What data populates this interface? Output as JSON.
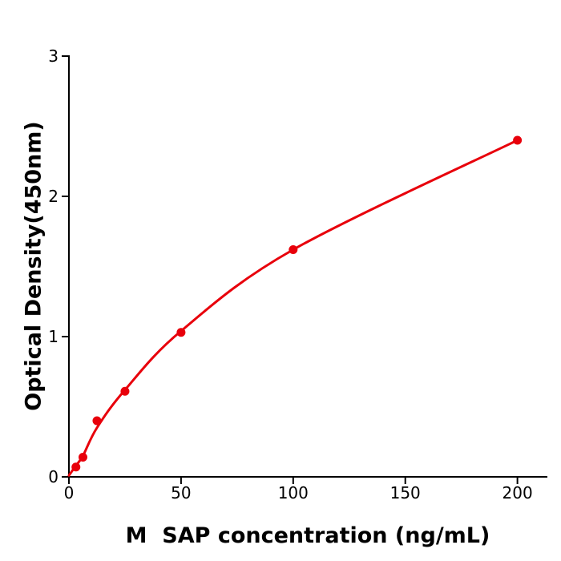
{
  "chart_data": {
    "type": "scatter",
    "title": "",
    "xlabel": "M  SAP concentration (ng/mL)",
    "ylabel": "Optical Density(450nm)",
    "x": [
      3.125,
      6.25,
      12.5,
      25,
      50,
      100,
      200
    ],
    "y": [
      0.07,
      0.14,
      0.4,
      0.61,
      1.03,
      1.62,
      2.4
    ],
    "curve": {
      "x": [
        0,
        3.125,
        6.25,
        12.5,
        25,
        50,
        100,
        200
      ],
      "y": [
        0.01,
        0.08,
        0.15,
        0.35,
        0.62,
        1.04,
        1.62,
        2.4
      ]
    },
    "xlim": [
      0,
      213
    ],
    "ylim": [
      0,
      3
    ],
    "xticks": [
      0,
      50,
      100,
      150,
      200
    ],
    "yticks": [
      0,
      1,
      2,
      3
    ],
    "grid": false,
    "legend": null,
    "line_color": "#e8000b",
    "marker_color": "#e8000b",
    "axis_color": "#000000",
    "background_color": "#ffffff"
  }
}
